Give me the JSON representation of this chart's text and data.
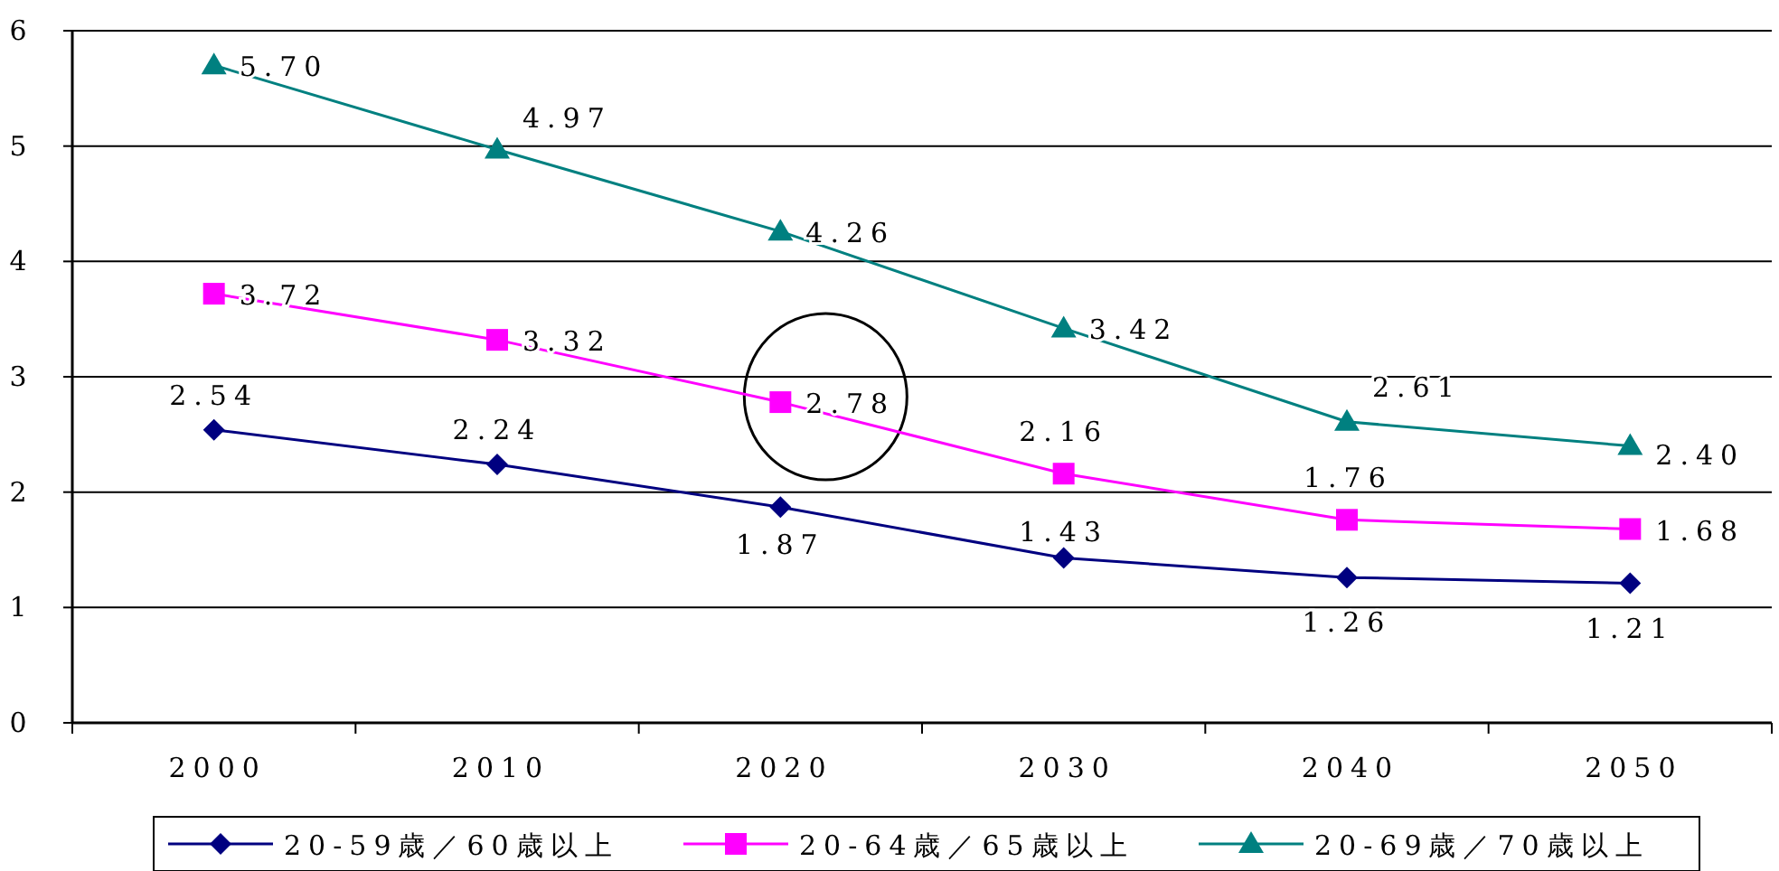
{
  "chart_data": {
    "type": "line",
    "categories": [
      "2000",
      "2010",
      "2020",
      "2030",
      "2040",
      "2050"
    ],
    "series": [
      {
        "name": "20-59歳／60歳以上",
        "color": "#000080",
        "marker": "diamond",
        "values": [
          2.54,
          2.24,
          1.87,
          1.43,
          1.26,
          1.21
        ],
        "value_labels": [
          "2.54",
          "2.24",
          "1.87",
          "1.43",
          "1.26",
          "1.21"
        ]
      },
      {
        "name": "20-64歳／65歳以上",
        "color": "#ff00ff",
        "marker": "square",
        "values": [
          3.72,
          3.32,
          2.78,
          2.16,
          1.76,
          1.68
        ],
        "value_labels": [
          "3.72",
          "3.32",
          "2.78",
          "2.16",
          "1.76",
          "1.68"
        ]
      },
      {
        "name": "20-69歳／70歳以上",
        "color": "#008080",
        "marker": "triangle",
        "values": [
          5.7,
          4.97,
          4.26,
          3.42,
          2.61,
          2.4
        ],
        "value_labels": [
          "5.70",
          "4.97",
          "4.26",
          "3.42",
          "2.61",
          "2.40"
        ]
      }
    ],
    "ylim": [
      0,
      6
    ],
    "yticks": [
      0,
      1,
      2,
      3,
      4,
      5,
      6
    ],
    "grid": "y",
    "legend": "bottom",
    "line_style": "solid"
  }
}
